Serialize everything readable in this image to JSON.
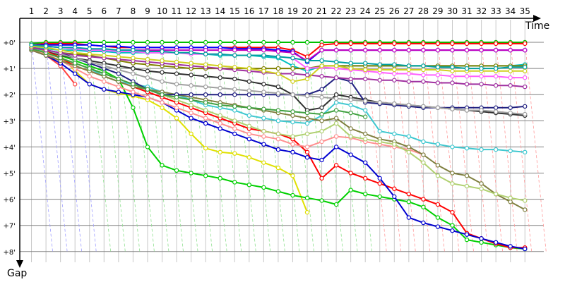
{
  "chart_data": {
    "type": "line",
    "xlabel": "Time",
    "ylabel": "Gap",
    "x_ticks": [
      "1",
      "2",
      "3",
      "4",
      "5",
      "6",
      "7",
      "8",
      "9",
      "10",
      "11",
      "12",
      "13",
      "14",
      "15",
      "16",
      "17",
      "18",
      "19",
      "20",
      "21",
      "22",
      "23",
      "24",
      "25",
      "26",
      "27",
      "28",
      "29",
      "30",
      "31",
      "32",
      "33",
      "34",
      "35"
    ],
    "y_ticks": [
      "+0'",
      "+1'",
      "+2'",
      "+3'",
      "+4'",
      "+5'",
      "+6'",
      "+7'",
      "+8'"
    ],
    "ylim": [
      0,
      8
    ],
    "xlim": [
      0,
      35.5
    ],
    "grid": true,
    "colors": {
      "grid_light": "#c8c8c8",
      "grid_major": "#808080",
      "vline_early": "#a0a0ff",
      "vline_mid": "#90e090",
      "vline_late": "#ff9a9a"
    },
    "series": [
      {
        "color": "#00c000",
        "values": [
          0.05,
          0.0,
          0.0,
          0.0,
          0.0,
          0.0,
          0.0,
          0.0,
          0.0,
          0.0,
          0.0,
          0.0,
          0.0,
          0.0,
          0.0,
          0.0,
          0.0,
          0.0,
          0.0,
          0.0,
          0.0,
          0.0,
          0.0,
          0.0,
          0.0,
          0.0,
          0.0,
          0.0,
          0.0,
          0.0,
          0.0,
          0.0,
          0.0,
          0.0,
          0.0
        ]
      },
      {
        "color": "#ff0000",
        "values": [
          0.1,
          0.05,
          0.05,
          0.05,
          0.1,
          0.15,
          0.2,
          0.2,
          0.2,
          0.2,
          0.2,
          0.2,
          0.2,
          0.2,
          0.2,
          0.2,
          0.2,
          0.2,
          0.3,
          0.55,
          0.1,
          0.05,
          0.05,
          0.05,
          0.05,
          0.05,
          0.05,
          0.05,
          0.05,
          0.05,
          0.05,
          0.05,
          0.05,
          0.05,
          0.05
        ]
      },
      {
        "color": "#0000ff",
        "values": [
          0.1,
          0.1,
          0.1,
          0.1,
          0.1,
          0.15,
          0.15,
          0.2,
          0.2,
          0.2,
          0.2,
          0.2,
          0.2,
          0.2,
          0.25,
          0.25,
          0.25,
          0.3,
          0.35,
          0.75,
          0.3,
          0.3,
          0.3,
          0.3,
          0.3,
          0.3,
          0.3,
          0.3,
          0.3,
          0.3,
          0.3,
          0.3,
          0.3,
          0.3,
          0.3
        ]
      },
      {
        "color": "#c000c0",
        "values": [
          0.15,
          0.15,
          0.2,
          0.25,
          0.3,
          0.3,
          0.3,
          0.3,
          0.3,
          0.3,
          0.3,
          0.3,
          0.3,
          0.3,
          0.3,
          0.3,
          0.3,
          0.35,
          0.4,
          0.7,
          0.3,
          0.3,
          0.3,
          0.3,
          0.3,
          0.3,
          0.3,
          0.3,
          0.3,
          0.3,
          0.3,
          0.3,
          0.3,
          0.3,
          0.3
        ]
      },
      {
        "color": "#00c0c0",
        "values": [
          0.2,
          0.25,
          0.3,
          0.3,
          0.35,
          0.35,
          0.4,
          0.4,
          0.4,
          0.4,
          0.4,
          0.4,
          0.45,
          0.5,
          0.5,
          0.5,
          0.55,
          0.6,
          0.9,
          1.1,
          0.9,
          0.9,
          0.9,
          0.9,
          0.9,
          0.9,
          0.9,
          0.9,
          0.9,
          0.9,
          0.9,
          0.9,
          0.9,
          0.9,
          0.85
        ]
      },
      {
        "color": "#808000",
        "values": [
          0.3,
          0.35,
          0.4,
          0.45,
          0.5,
          0.6,
          0.7,
          0.8,
          0.85,
          0.9,
          0.95,
          1.0,
          1.0,
          1.0,
          1.0,
          1.0,
          1.0,
          1.0,
          1.0,
          1.0,
          0.9,
          0.9,
          0.9,
          0.9,
          0.9,
          0.9,
          0.9,
          0.9,
          0.9,
          0.9,
          0.9,
          0.9,
          0.9,
          0.9,
          0.9
        ]
      },
      {
        "color": "#e0e000",
        "values": [
          0.25,
          0.35,
          0.5,
          1.1,
          1.6,
          1.8,
          1.95,
          2.05,
          2.2,
          2.5,
          2.9,
          3.5,
          4.05,
          4.2,
          4.25,
          4.4,
          4.6,
          4.8,
          5.1,
          6.5,
          null,
          null,
          null,
          null,
          null,
          null,
          null,
          null,
          null,
          null,
          null,
          null,
          null,
          null,
          null
        ]
      },
      {
        "color": "#ff4040",
        "values": [
          0.3,
          0.5,
          0.9,
          1.6,
          null,
          null,
          null,
          null,
          null,
          null,
          null,
          null,
          null,
          null,
          null,
          null,
          null,
          null,
          null,
          null,
          null,
          null,
          null,
          null,
          null,
          null,
          null,
          null,
          null,
          null,
          null,
          null,
          null,
          null,
          null
        ]
      },
      {
        "color": "#00d000",
        "values": [
          0.2,
          0.3,
          0.5,
          0.7,
          0.9,
          1.1,
          1.4,
          2.5,
          4.0,
          4.7,
          4.9,
          5.0,
          5.1,
          5.2,
          5.35,
          5.45,
          5.55,
          5.7,
          5.85,
          5.95,
          6.05,
          6.2,
          5.65,
          5.8,
          5.9,
          6.0,
          6.1,
          6.3,
          6.7,
          7.0,
          7.55,
          7.65,
          7.75,
          7.85,
          7.9
        ]
      },
      {
        "color": "#ff0000",
        "values": [
          0.2,
          0.3,
          0.6,
          0.9,
          1.1,
          1.3,
          1.5,
          1.7,
          1.9,
          2.1,
          2.3,
          2.5,
          2.7,
          2.9,
          3.1,
          3.3,
          3.4,
          3.5,
          3.7,
          4.2,
          5.2,
          4.7,
          5.0,
          5.2,
          5.4,
          5.6,
          5.8,
          6.0,
          6.2,
          6.5,
          7.3,
          7.5,
          7.7,
          7.85,
          7.85
        ]
      },
      {
        "color": "#0000d0",
        "values": [
          0.3,
          0.5,
          0.8,
          1.2,
          1.6,
          1.8,
          1.9,
          2.0,
          2.1,
          2.3,
          2.6,
          2.9,
          3.1,
          3.3,
          3.5,
          3.7,
          3.9,
          4.1,
          4.2,
          4.4,
          4.5,
          4.0,
          4.3,
          4.6,
          5.2,
          5.9,
          6.7,
          6.9,
          7.05,
          7.2,
          7.35,
          7.5,
          7.65,
          7.8,
          7.9
        ]
      },
      {
        "color": "#40c8d0",
        "values": [
          0.2,
          0.4,
          0.6,
          0.8,
          1.0,
          1.3,
          1.5,
          1.6,
          1.7,
          1.9,
          2.0,
          2.2,
          2.4,
          2.5,
          2.6,
          2.8,
          2.9,
          3.0,
          3.05,
          3.1,
          2.8,
          2.3,
          2.4,
          2.6,
          3.4,
          3.5,
          3.6,
          3.8,
          3.9,
          4.0,
          4.05,
          4.1,
          4.1,
          4.15,
          4.2
        ]
      },
      {
        "color": "#ff9090",
        "values": [
          0.25,
          0.45,
          0.7,
          1.0,
          1.3,
          1.5,
          1.7,
          1.9,
          2.1,
          2.3,
          2.5,
          2.7,
          2.9,
          3.1,
          3.3,
          3.5,
          3.6,
          3.7,
          3.9,
          4.0,
          3.8,
          3.6,
          3.65,
          3.8,
          3.9,
          4.0,
          4.1,
          4.3,
          null,
          null,
          null,
          null,
          null,
          null,
          null
        ]
      },
      {
        "color": "#808040",
        "values": [
          0.3,
          0.5,
          0.7,
          0.9,
          1.1,
          1.3,
          1.5,
          1.7,
          1.8,
          1.9,
          2.0,
          2.1,
          2.2,
          2.3,
          2.4,
          2.5,
          2.6,
          2.7,
          2.8,
          2.9,
          3.0,
          2.9,
          3.3,
          3.5,
          3.7,
          3.8,
          4.0,
          4.3,
          4.7,
          5.0,
          5.1,
          5.4,
          5.8,
          6.1,
          6.4
        ]
      },
      {
        "color": "#b0d070",
        "values": [
          0.25,
          0.4,
          0.6,
          0.8,
          1.0,
          1.2,
          1.4,
          1.6,
          1.8,
          2.0,
          2.2,
          2.4,
          2.6,
          2.8,
          3.0,
          3.2,
          3.4,
          3.5,
          3.6,
          3.5,
          3.4,
          3.1,
          3.6,
          3.7,
          3.8,
          3.9,
          4.2,
          4.6,
          5.1,
          5.4,
          5.5,
          5.6,
          5.8,
          5.95,
          6.05
        ]
      },
      {
        "color": "#303030",
        "values": [
          0.2,
          0.3,
          0.5,
          0.6,
          0.7,
          0.8,
          0.9,
          1.0,
          1.1,
          1.15,
          1.2,
          1.25,
          1.3,
          1.35,
          1.4,
          1.5,
          1.6,
          1.7,
          2.0,
          2.6,
          2.5,
          2.0,
          2.1,
          2.2,
          2.3,
          2.35,
          2.4,
          2.45,
          2.5,
          2.55,
          2.6,
          2.65,
          2.7,
          2.75,
          2.8
        ]
      },
      {
        "color": "#202080",
        "values": [
          0.2,
          0.3,
          0.4,
          0.6,
          0.8,
          1.0,
          1.2,
          1.5,
          1.8,
          2.0,
          2.0,
          2.0,
          2.0,
          2.0,
          2.0,
          2.0,
          2.0,
          2.0,
          2.0,
          2.0,
          1.8,
          1.35,
          1.5,
          2.3,
          2.35,
          2.4,
          2.45,
          2.5,
          2.5,
          2.5,
          2.5,
          2.5,
          2.5,
          2.5,
          2.45
        ]
      },
      {
        "color": "#40a040",
        "values": [
          0.25,
          0.4,
          0.6,
          0.8,
          1.0,
          1.2,
          1.4,
          1.6,
          1.8,
          2.0,
          2.1,
          2.2,
          2.3,
          2.4,
          2.45,
          2.5,
          2.55,
          2.6,
          2.65,
          2.7,
          2.75,
          2.6,
          2.7,
          2.85,
          null,
          null,
          null,
          null,
          null,
          null,
          null,
          null,
          null,
          null,
          null
        ]
      },
      {
        "color": "#a0a0a0",
        "values": [
          0.2,
          0.3,
          0.45,
          0.6,
          0.75,
          0.9,
          1.05,
          1.2,
          1.35,
          1.5,
          1.6,
          1.65,
          1.7,
          1.75,
          1.8,
          1.85,
          1.9,
          1.95,
          2.0,
          2.05,
          2.1,
          2.15,
          2.2,
          2.25,
          2.3,
          2.35,
          2.4,
          2.45,
          2.5,
          2.55,
          2.6,
          2.6,
          2.65,
          2.7,
          2.75
        ]
      },
      {
        "color": "#a030a0",
        "values": [
          0.2,
          0.3,
          0.4,
          0.5,
          0.55,
          0.6,
          0.65,
          0.7,
          0.75,
          0.8,
          0.85,
          0.9,
          0.95,
          1.0,
          1.05,
          1.1,
          1.15,
          1.2,
          1.2,
          1.25,
          1.3,
          1.35,
          1.4,
          1.4,
          1.45,
          1.45,
          1.5,
          1.5,
          1.55,
          1.55,
          1.6,
          1.6,
          1.65,
          1.65,
          1.7
        ]
      },
      {
        "color": "#ff60ff",
        "values": [
          0.1,
          0.15,
          0.2,
          0.25,
          0.3,
          0.3,
          0.35,
          0.35,
          0.4,
          0.4,
          0.4,
          0.45,
          0.45,
          0.45,
          0.5,
          0.5,
          0.5,
          0.55,
          0.6,
          1.0,
          0.95,
          1.0,
          1.05,
          1.1,
          1.15,
          1.2,
          1.2,
          1.25,
          1.25,
          1.3,
          1.3,
          1.3,
          1.3,
          1.35,
          1.35
        ]
      },
      {
        "color": "#d0d020",
        "values": [
          0.15,
          0.2,
          0.3,
          0.4,
          0.45,
          0.5,
          0.55,
          0.6,
          0.65,
          0.7,
          0.75,
          0.8,
          0.85,
          0.9,
          0.95,
          1.0,
          1.1,
          1.2,
          1.5,
          1.4,
          0.9,
          0.9,
          1.0,
          1.05,
          1.05,
          1.05,
          1.05,
          1.05,
          1.05,
          1.1,
          1.1,
          1.1,
          1.1,
          1.1,
          1.1
        ]
      },
      {
        "color": "#00a0a0",
        "values": [
          0.1,
          0.15,
          0.2,
          0.2,
          0.25,
          0.25,
          0.3,
          0.3,
          0.35,
          0.35,
          0.4,
          0.4,
          0.45,
          0.45,
          0.5,
          0.5,
          0.5,
          0.55,
          0.6,
          0.7,
          0.7,
          0.75,
          0.8,
          0.8,
          0.85,
          0.85,
          0.9,
          0.9,
          0.95,
          0.95,
          1.0,
          1.0,
          1.0,
          0.95,
          0.95
        ]
      }
    ]
  }
}
